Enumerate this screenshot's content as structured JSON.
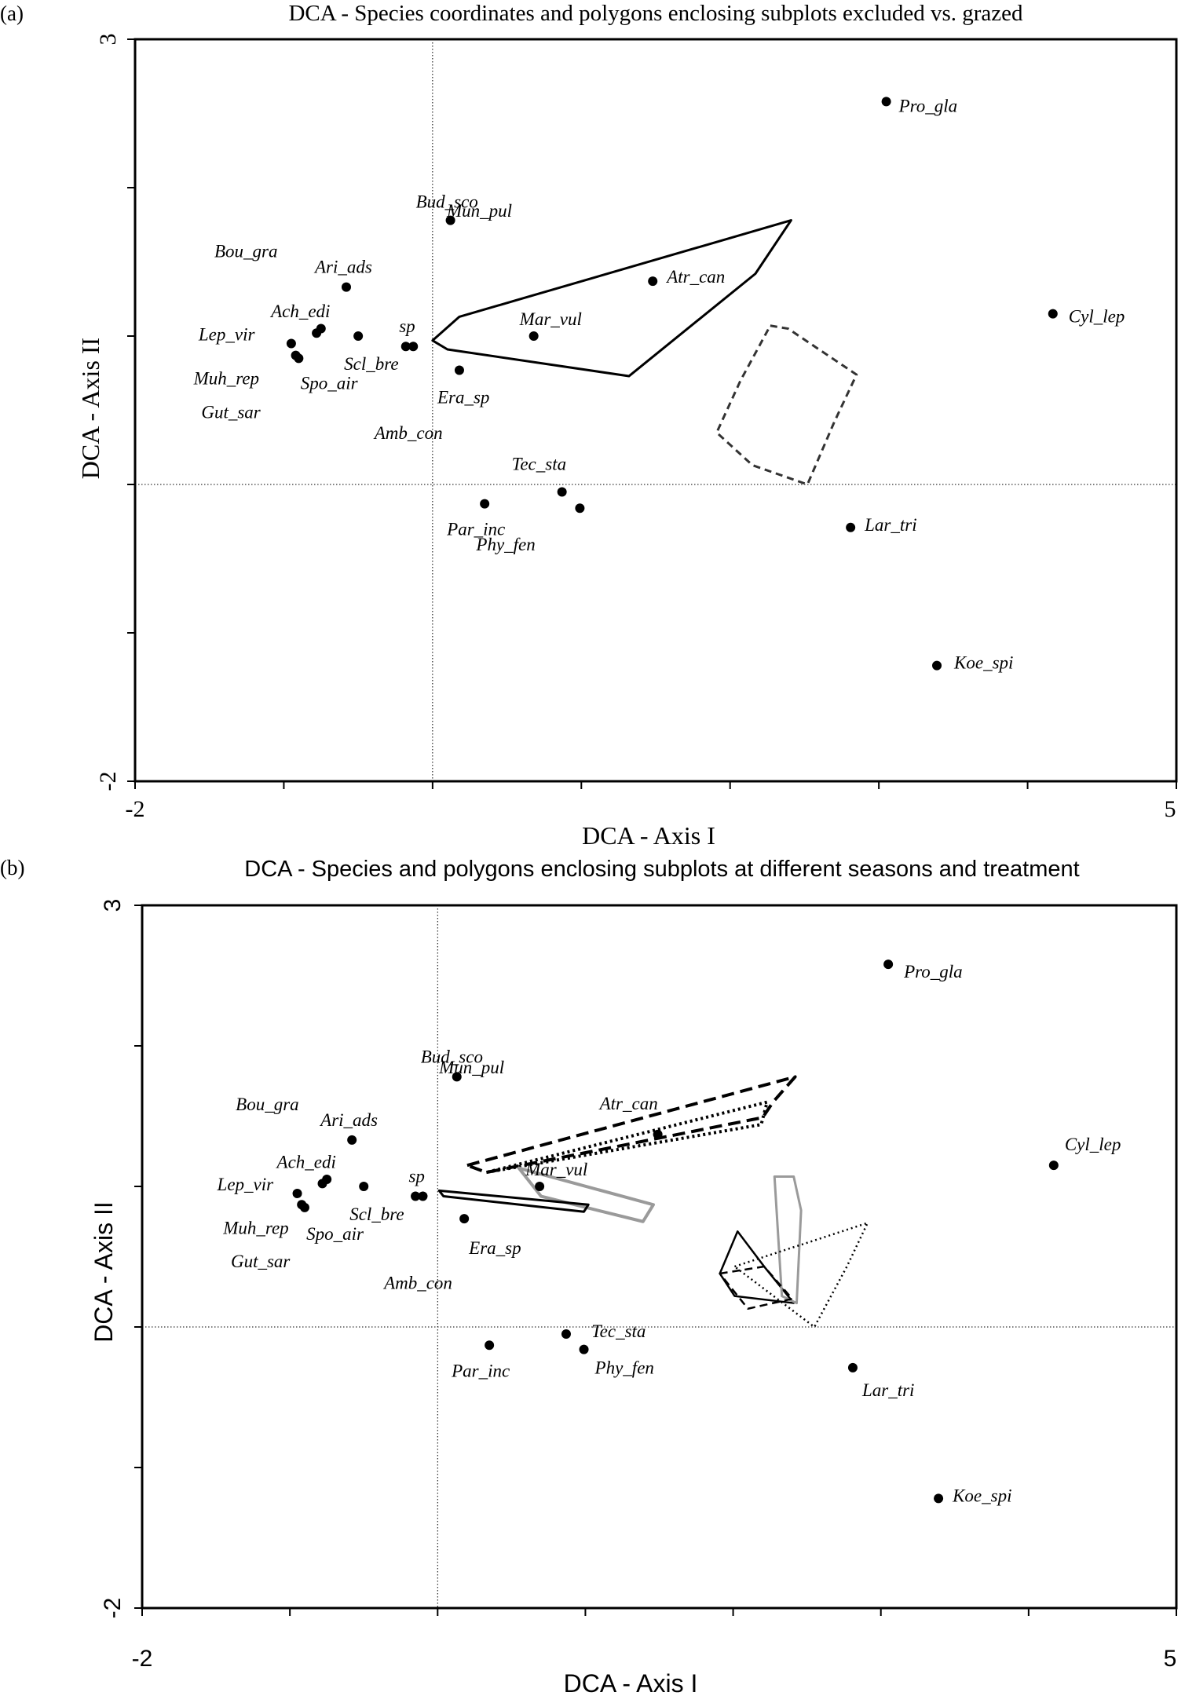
{
  "chart_data": [
    {
      "type": "scatter",
      "panel": "(a)",
      "title": "DCA - Species coordinates and polygons enclosing subplots excluded vs. grazed",
      "xlabel": "DCA - Axis I",
      "ylabel": "DCA - Axis II",
      "xlim": [
        -2,
        5
      ],
      "ylim": [
        -2,
        3
      ],
      "x_tick_labels": [
        "-2",
        "5"
      ],
      "y_tick_labels": [
        "3",
        "-2"
      ],
      "grid": false,
      "reference_lines": {
        "x": 0,
        "y": 0
      },
      "points": [
        {
          "label": "Pro_gla",
          "x": 3.05,
          "y": 2.58
        },
        {
          "label": "Bud_sco",
          "x": 0.12,
          "y": 1.78
        },
        {
          "label": "Atr_can",
          "x": 1.48,
          "y": 1.37
        },
        {
          "label": "Mun_pul",
          "x": null,
          "y": null
        },
        {
          "label": "Ari_ads",
          "x": -0.58,
          "y": 1.33
        },
        {
          "label": "Bou_gra",
          "x": null,
          "y": null
        },
        {
          "label": "Ach_edi",
          "x": -0.78,
          "y": 1.02
        },
        {
          "label": "Lep_vir",
          "x": -0.95,
          "y": 0.95
        },
        {
          "label": "Mar_vul",
          "x": 0.68,
          "y": 1.0
        },
        {
          "label": "sp",
          "x": -0.13,
          "y": 0.93
        },
        {
          "label": "Scl_bre",
          "x": -0.5,
          "y": 1.0
        },
        {
          "label": "Muh_rep",
          "x": -0.92,
          "y": 0.87
        },
        {
          "label": "Gut_sar",
          "x": -0.9,
          "y": 0.85
        },
        {
          "label": "Spo_air",
          "x": -0.75,
          "y": 1.05
        },
        {
          "label": "Amb_con",
          "x": -0.18,
          "y": 0.93
        },
        {
          "label": "Era_sp",
          "x": 0.18,
          "y": 0.77
        },
        {
          "label": "Cyl_lep",
          "x": 4.17,
          "y": 1.15
        },
        {
          "label": "Tec_sta",
          "x": 0.87,
          "y": -0.05
        },
        {
          "label": "Par_inc",
          "x": 0.35,
          "y": -0.13
        },
        {
          "label": "Phy_fen",
          "x": 0.99,
          "y": -0.16
        },
        {
          "label": "Lar_tri",
          "x": 2.81,
          "y": -0.29
        },
        {
          "label": "Koe_spi",
          "x": 3.39,
          "y": -1.22
        }
      ],
      "polygons": [
        {
          "style": "solid-black",
          "vertices": [
            [
              0,
              0.97
            ],
            [
              0.18,
              1.13
            ],
            [
              2.41,
              1.78
            ],
            [
              2.17,
              1.42
            ],
            [
              1.32,
              0.73
            ],
            [
              0.1,
              0.91
            ]
          ]
        },
        {
          "style": "dashed-black",
          "vertices": [
            [
              2.27,
              1.07
            ],
            [
              2.39,
              1.05
            ],
            [
              2.85,
              0.74
            ],
            [
              2.7,
              0.42
            ],
            [
              2.52,
              0.0
            ],
            [
              2.15,
              0.13
            ],
            [
              1.91,
              0.35
            ],
            [
              2.07,
              0.7
            ]
          ]
        }
      ]
    },
    {
      "type": "scatter",
      "panel": "(b)",
      "title": "DCA - Species and polygons enclosing subplots at different seasons and treatment",
      "xlabel": "DCA - Axis I",
      "ylabel": "DCA - Axis II",
      "xlim": [
        -2,
        5
      ],
      "ylim": [
        -2,
        3
      ],
      "x_tick_labels": [
        "-2",
        "5"
      ],
      "y_tick_labels": [
        "3",
        "-2"
      ],
      "grid": false,
      "reference_lines": {
        "x": 0,
        "y": 0
      },
      "points": [
        {
          "label": "Pro_gla",
          "x": 3.05,
          "y": 2.58
        },
        {
          "label": "Bud_sco",
          "x": 0.13,
          "y": 1.78
        },
        {
          "label": "Atr_can",
          "x": 1.49,
          "y": 1.37
        },
        {
          "label": "Mun_pul",
          "x": null,
          "y": null
        },
        {
          "label": "Ari_ads",
          "x": -0.58,
          "y": 1.33
        },
        {
          "label": "Bou_gra",
          "x": null,
          "y": null
        },
        {
          "label": "Ach_edi",
          "x": -0.78,
          "y": 1.02
        },
        {
          "label": "Lep_vir",
          "x": -0.95,
          "y": 0.95
        },
        {
          "label": "Mar_vul",
          "x": 0.69,
          "y": 1.0
        },
        {
          "label": "sp",
          "x": -0.1,
          "y": 0.93
        },
        {
          "label": "Scl_bre",
          "x": -0.5,
          "y": 1.0
        },
        {
          "label": "Muh_rep",
          "x": -0.92,
          "y": 0.87
        },
        {
          "label": "Gut_sar",
          "x": -0.9,
          "y": 0.85
        },
        {
          "label": "Spo_air",
          "x": -0.75,
          "y": 1.05
        },
        {
          "label": "Amb_con",
          "x": -0.15,
          "y": 0.93
        },
        {
          "label": "Era_sp",
          "x": 0.18,
          "y": 0.77
        },
        {
          "label": "Cyl_lep",
          "x": 4.17,
          "y": 1.15
        },
        {
          "label": "Tec_sta",
          "x": 0.87,
          "y": -0.05
        },
        {
          "label": "Par_inc",
          "x": 0.35,
          "y": -0.13
        },
        {
          "label": "Phy_fen",
          "x": 0.99,
          "y": -0.16
        },
        {
          "label": "Lar_tri",
          "x": 2.81,
          "y": -0.29
        },
        {
          "label": "Koe_spi",
          "x": 3.39,
          "y": -1.22
        }
      ],
      "polygons": [
        {
          "style": "dashed-black-thick",
          "vertices": [
            [
              0.2,
              1.15
            ],
            [
              2.42,
              1.78
            ],
            [
              2.27,
              1.6
            ],
            [
              2.2,
              1.49
            ],
            [
              0.33,
              1.1
            ]
          ]
        },
        {
          "style": "dotted-black-thick",
          "vertices": [
            [
              0.33,
              1.1
            ],
            [
              2.19,
              1.44
            ],
            [
              2.23,
              1.6
            ],
            [
              0.33,
              1.1
            ]
          ]
        },
        {
          "style": "solid-gray",
          "vertices": [
            [
              0.55,
              1.13
            ],
            [
              1.46,
              0.87
            ],
            [
              1.39,
              0.75
            ],
            [
              0.7,
              0.93
            ],
            [
              0.55,
              1.13
            ]
          ]
        },
        {
          "style": "solid-black",
          "vertices": [
            [
              0.01,
              0.97
            ],
            [
              1.02,
              0.87
            ],
            [
              0.99,
              0.82
            ],
            [
              0.04,
              0.93
            ]
          ]
        },
        {
          "style": "solid-black-thin",
          "vertices": [
            [
              2.03,
              0.68
            ],
            [
              2.21,
              0.43
            ],
            [
              2.41,
              0.17
            ],
            [
              2.01,
              0.22
            ],
            [
              1.91,
              0.38
            ]
          ]
        },
        {
          "style": "solid-gray-thin",
          "vertices": [
            [
              2.28,
              1.07
            ],
            [
              2.41,
              1.07
            ],
            [
              2.46,
              0.83
            ],
            [
              2.43,
              0.17
            ],
            [
              2.33,
              0.22
            ]
          ]
        },
        {
          "style": "dotted-black-thin",
          "vertices": [
            [
              2.01,
              0.43
            ],
            [
              2.91,
              0.74
            ],
            [
              2.77,
              0.43
            ],
            [
              2.55,
              0.0
            ],
            [
              2.01,
              0.43
            ]
          ]
        },
        {
          "style": "dashed-black-thin",
          "vertices": [
            [
              1.91,
              0.38
            ],
            [
              2.21,
              0.43
            ],
            [
              2.4,
              0.2
            ],
            [
              2.1,
              0.13
            ],
            [
              1.91,
              0.38
            ]
          ]
        }
      ]
    }
  ]
}
